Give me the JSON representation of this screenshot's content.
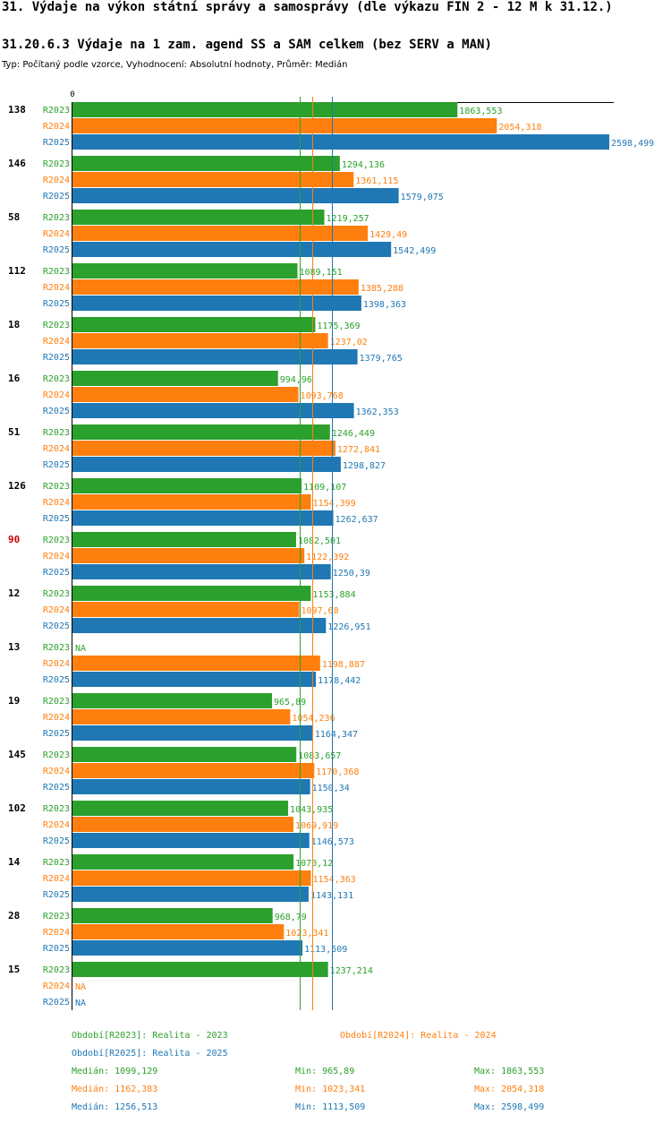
{
  "header": {
    "title": "31. Výdaje na výkon státní správy a samosprávy (dle výkazu FIN 2 - 12 M k 31.12.)",
    "subtitle": "31.20.6.3 Výdaje na 1 zam. agend SS a SAM celkem (bez SERV a MAN)",
    "type_line": "Typ: Počítaný podle vzorce, Vyhodnocení: Absolutní hodnoty, Průměr: Medián"
  },
  "chart_data": {
    "type": "bar",
    "orientation": "horizontal",
    "xlim": [
      0,
      2598.499
    ],
    "axis_tick_label": "0",
    "highlight_category": "90",
    "series": [
      {
        "key": "R2023",
        "name": "R2023",
        "color": "#2ca02c"
      },
      {
        "key": "R2024",
        "name": "R2024",
        "color": "#ff7f0e"
      },
      {
        "key": "R2025",
        "name": "R2025",
        "color": "#1f77b4"
      }
    ],
    "categories": [
      {
        "label": "138",
        "values": [
          1863.553,
          2054.318,
          2598.499
        ],
        "labels": [
          "1863,553",
          "2054,318",
          "2598,499"
        ]
      },
      {
        "label": "146",
        "values": [
          1294.136,
          1361.115,
          1579.075
        ],
        "labels": [
          "1294,136",
          "1361,115",
          "1579,075"
        ]
      },
      {
        "label": "58",
        "values": [
          1219.257,
          1429.49,
          1542.499
        ],
        "labels": [
          "1219,257",
          "1429,49",
          "1542,499"
        ]
      },
      {
        "label": "112",
        "values": [
          1089.151,
          1385.288,
          1398.363
        ],
        "labels": [
          "1089,151",
          "1385,288",
          "1398,363"
        ]
      },
      {
        "label": "18",
        "values": [
          1175.369,
          1237.02,
          1379.765
        ],
        "labels": [
          "1175,369",
          "1237,02",
          "1379,765"
        ]
      },
      {
        "label": "16",
        "values": [
          994.96,
          1093.768,
          1362.353
        ],
        "labels": [
          "994,96",
          "1093,768",
          "1362,353"
        ]
      },
      {
        "label": "51",
        "values": [
          1246.449,
          1272.841,
          1298.827
        ],
        "labels": [
          "1246,449",
          "1272,841",
          "1298,827"
        ]
      },
      {
        "label": "126",
        "values": [
          1109.107,
          1154.399,
          1262.637
        ],
        "labels": [
          "1109,107",
          "1154,399",
          "1262,637"
        ]
      },
      {
        "label": "90",
        "values": [
          1082.501,
          1122.392,
          1250.39
        ],
        "labels": [
          "1082,501",
          "1122,392",
          "1250,39"
        ]
      },
      {
        "label": "12",
        "values": [
          1153.884,
          1097.68,
          1226.951
        ],
        "labels": [
          "1153,884",
          "1097,68",
          "1226,951"
        ]
      },
      {
        "label": "13",
        "values": [
          null,
          1198.887,
          1178.442
        ],
        "labels": [
          "NA",
          "1198,887",
          "1178,442"
        ]
      },
      {
        "label": "19",
        "values": [
          965.89,
          1054.236,
          1164.347
        ],
        "labels": [
          "965,89",
          "1054,236",
          "1164,347"
        ]
      },
      {
        "label": "145",
        "values": [
          1083.657,
          1170.368,
          1150.34
        ],
        "labels": [
          "1083,657",
          "1170,368",
          "1150,34"
        ]
      },
      {
        "label": "102",
        "values": [
          1043.935,
          1069.919,
          1146.573
        ],
        "labels": [
          "1043,935",
          "1069,919",
          "1146,573"
        ]
      },
      {
        "label": "14",
        "values": [
          1070.12,
          1154.363,
          1143.131
        ],
        "labels": [
          "1070,12",
          "1154,363",
          "1143,131"
        ]
      },
      {
        "label": "28",
        "values": [
          968.79,
          1023.341,
          1113.509
        ],
        "labels": [
          "968,79",
          "1023,341",
          "1113,509"
        ]
      },
      {
        "label": "15",
        "values": [
          1237.214,
          null,
          null
        ],
        "labels": [
          "1237,214",
          "NA",
          "NA"
        ]
      }
    ],
    "medians": [
      1099.129,
      1162.383,
      1256.513
    ]
  },
  "legend": {
    "items": [
      {
        "text": "Období[R2023]: Realita - 2023",
        "color": "#2ca02c"
      },
      {
        "text": "Období[R2024]: Realita - 2024",
        "color": "#ff7f0e"
      },
      {
        "text": "Období[R2025]: Realita - 2025",
        "color": "#1f77b4"
      }
    ]
  },
  "stats": [
    {
      "median": "Medián: 1099,129",
      "min": "Min: 965,89",
      "max": "Max: 1863,553",
      "color": "#2ca02c"
    },
    {
      "median": "Medián: 1162,383",
      "min": "Min: 1023,341",
      "max": "Max: 2054,318",
      "color": "#ff7f0e"
    },
    {
      "median": "Medián: 1256,513",
      "min": "Min: 1113,509",
      "max": "Max: 2598,499",
      "color": "#1f77b4"
    }
  ]
}
